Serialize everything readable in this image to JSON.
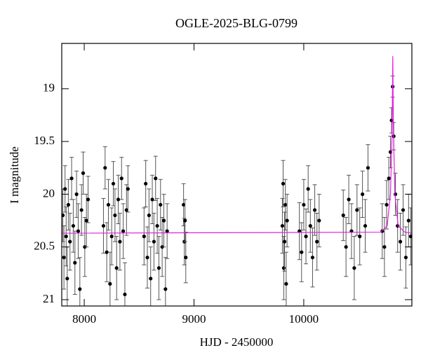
{
  "chart_data": {
    "type": "scatter",
    "title": "OGLE-2025-BLG-0799",
    "x_label": "HJD - 2450000",
    "y_label": "I magnitude",
    "xlim": [
      7795,
      10985
    ],
    "ylim": [
      18.57,
      21.06
    ],
    "y_inverted": true,
    "xticks": [
      8000,
      9000,
      10000
    ],
    "yticks": [
      19,
      19.5,
      20,
      20.5,
      21
    ],
    "series": [
      {
        "color": "#000000",
        "error_color": "#555555",
        "x": [
          7805,
          7815,
          7825,
          7835,
          7845,
          7855,
          7870,
          7885,
          7900,
          7915,
          7930,
          7945,
          7960,
          7975,
          7990,
          8005,
          8020,
          8035,
          8175,
          8190,
          8205,
          8220,
          8235,
          8250,
          8265,
          8280,
          8295,
          8310,
          8325,
          8340,
          8355,
          8370,
          8385,
          8398,
          8545,
          8560,
          8575,
          8590,
          8605,
          8620,
          8635,
          8650,
          8665,
          8680,
          8695,
          8710,
          8725,
          8740,
          8755,
          8905,
          8912,
          8918,
          8925,
          9805,
          9812,
          9818,
          9825,
          9832,
          9840,
          9848,
          9960,
          9980,
          10000,
          10020,
          10040,
          10060,
          10080,
          10100,
          10120,
          10140,
          10360,
          10385,
          10410,
          10435,
          10460,
          10485,
          10510,
          10535,
          10560,
          10585,
          10715,
          10735,
          10755,
          10775,
          10790,
          10800,
          10810,
          10820,
          10835,
          10855,
          10880,
          10905,
          10930,
          10955,
          10975
        ],
        "values": [
          20.2,
          20.6,
          19.95,
          20.4,
          20.8,
          20.1,
          20.45,
          19.85,
          20.3,
          20.65,
          20.0,
          20.35,
          20.9,
          20.15,
          19.8,
          20.5,
          20.25,
          20.05,
          20.3,
          19.75,
          20.55,
          20.1,
          20.85,
          20.4,
          19.9,
          20.2,
          20.7,
          20.05,
          20.45,
          19.85,
          20.35,
          20.95,
          20.15,
          19.95,
          20.4,
          19.9,
          20.6,
          20.2,
          20.8,
          20.05,
          20.45,
          19.85,
          20.3,
          20.7,
          20.1,
          20.5,
          20.25,
          20.9,
          20.35,
          20.1,
          20.45,
          20.25,
          20.6,
          20.3,
          19.9,
          20.7,
          20.45,
          20.1,
          20.85,
          20.25,
          20.35,
          20.55,
          20.1,
          20.4,
          19.95,
          20.3,
          20.6,
          20.15,
          20.45,
          20.25,
          20.2,
          20.5,
          20.05,
          20.35,
          20.7,
          20.15,
          20.4,
          20.0,
          20.3,
          19.75,
          20.35,
          20.5,
          20.1,
          19.85,
          19.6,
          19.3,
          18.98,
          19.45,
          20.0,
          20.3,
          20.45,
          20.15,
          20.6,
          20.25,
          20.4
        ],
        "errors": [
          0.25,
          0.3,
          0.22,
          0.28,
          0.3,
          0.24,
          0.27,
          0.2,
          0.25,
          0.3,
          0.22,
          0.26,
          0.3,
          0.24,
          0.2,
          0.28,
          0.25,
          0.22,
          0.26,
          0.2,
          0.28,
          0.24,
          0.3,
          0.27,
          0.21,
          0.25,
          0.3,
          0.23,
          0.27,
          0.2,
          0.26,
          0.3,
          0.24,
          0.22,
          0.27,
          0.22,
          0.29,
          0.25,
          0.3,
          0.23,
          0.27,
          0.21,
          0.26,
          0.3,
          0.24,
          0.28,
          0.25,
          0.3,
          0.26,
          0.2,
          0.22,
          0.2,
          0.24,
          0.26,
          0.22,
          0.3,
          0.28,
          0.24,
          0.3,
          0.25,
          0.27,
          0.28,
          0.24,
          0.26,
          0.22,
          0.25,
          0.28,
          0.24,
          0.27,
          0.25,
          0.24,
          0.28,
          0.23,
          0.26,
          0.3,
          0.24,
          0.27,
          0.22,
          0.25,
          0.22,
          0.26,
          0.28,
          0.23,
          0.2,
          0.15,
          0.12,
          0.1,
          0.13,
          0.2,
          0.25,
          0.27,
          0.24,
          0.29,
          0.25,
          0.27
        ]
      },
      {
        "type": "line",
        "color": "#e020e0",
        "x": [
          7795,
          10700,
          10760,
          10790,
          10805,
          10811,
          10817,
          10830,
          10860,
          10920,
          10985
        ],
        "values": [
          20.37,
          20.36,
          20.3,
          20.0,
          19.4,
          18.69,
          19.4,
          20.0,
          20.3,
          20.36,
          20.37
        ]
      }
    ]
  }
}
